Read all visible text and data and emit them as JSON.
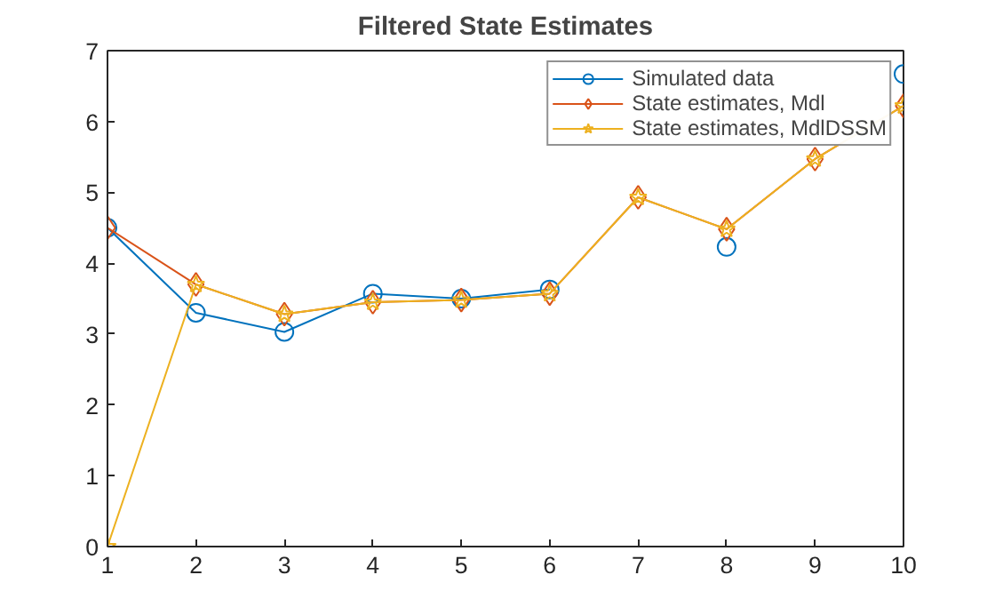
{
  "chart_data": {
    "type": "line",
    "title": "Filtered State Estimates",
    "x": [
      1,
      2,
      3,
      4,
      5,
      6,
      7,
      8,
      9,
      10
    ],
    "series": [
      {
        "name": "Simulated data",
        "color": "#0072bd",
        "marker": "circle",
        "values": [
          4.5,
          3.3,
          3.03,
          3.57,
          3.5,
          3.63,
          null,
          4.23,
          null,
          6.67
        ]
      },
      {
        "name": "State estimates, Mdl",
        "color": "#d95319",
        "marker": "diamond",
        "values": [
          4.5,
          3.7,
          3.28,
          3.45,
          3.48,
          3.57,
          4.93,
          4.48,
          5.47,
          6.22
        ]
      },
      {
        "name": "State estimates, MdlDSSM",
        "color": "#edb120",
        "marker": "star",
        "values": [
          0,
          3.7,
          3.28,
          3.45,
          3.48,
          3.57,
          4.93,
          4.48,
          5.47,
          6.22
        ]
      }
    ],
    "xlim": [
      1,
      10
    ],
    "xticks": [
      1,
      2,
      3,
      4,
      5,
      6,
      7,
      8,
      9,
      10
    ],
    "ylim": [
      0,
      7
    ],
    "yticks": [
      0,
      1,
      2,
      3,
      4,
      5,
      6,
      7
    ],
    "grid": false,
    "legend": "top right",
    "line_style": "solid"
  }
}
